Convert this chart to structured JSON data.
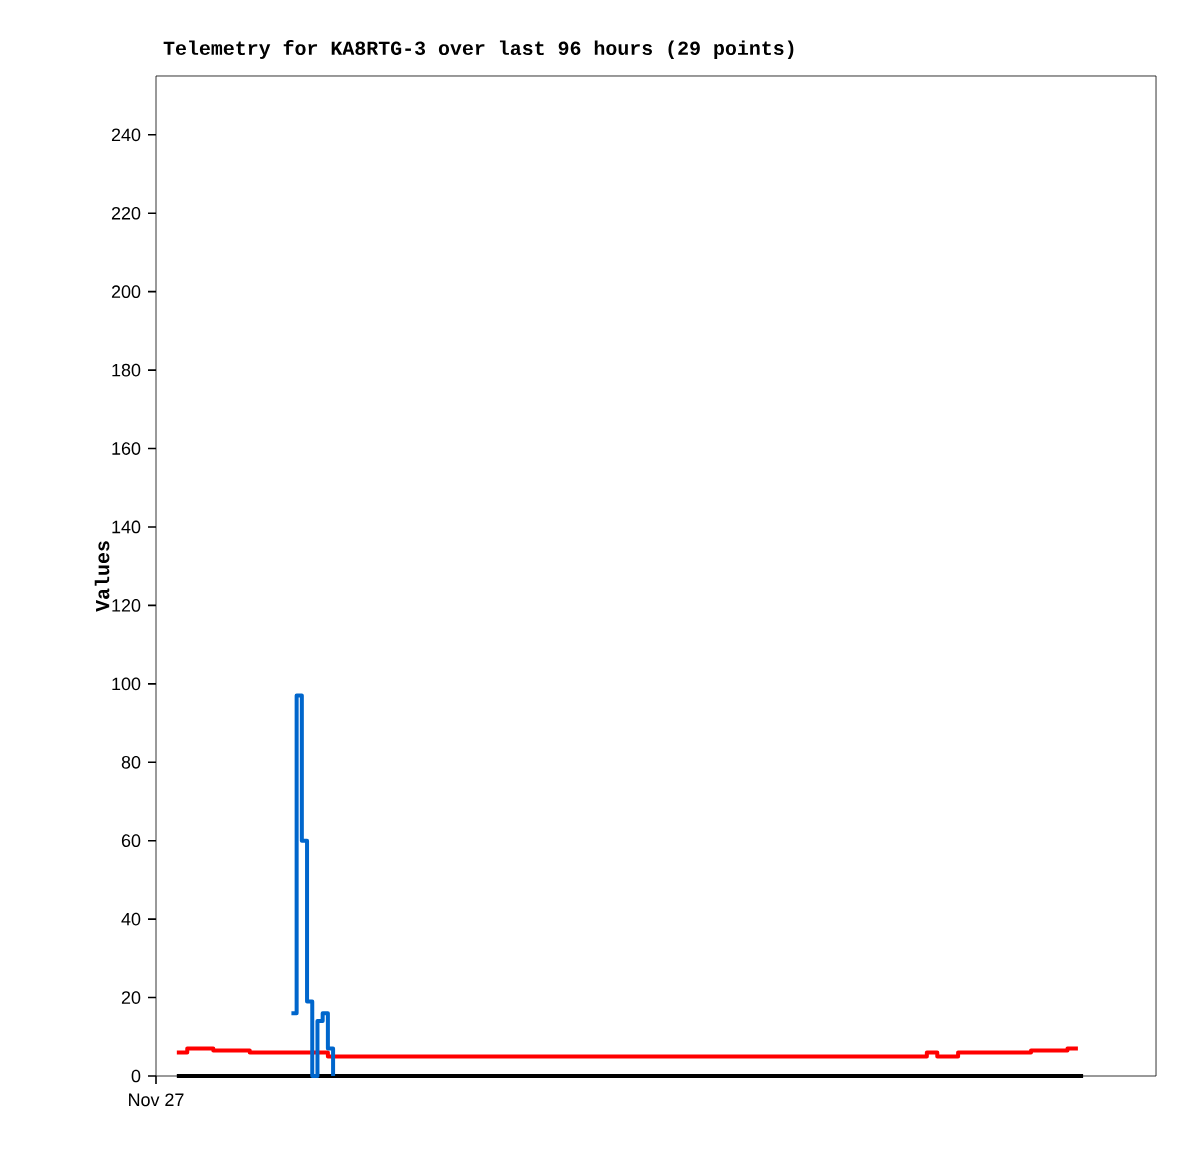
{
  "chart_data": {
    "type": "step",
    "title": "Telemetry for KA8RTG-3 over last 96 hours (29 points)",
    "ylabel": "Values",
    "annotations": [
      "Nov 27"
    ],
    "categories": [
      null,
      null,
      null,
      null,
      null,
      null,
      null,
      null,
      null,
      null,
      null,
      null,
      null,
      null,
      null,
      null,
      null,
      null,
      null,
      null,
      null,
      null,
      null,
      null,
      null,
      null,
      null,
      null,
      null,
      null,
      null,
      null,
      null,
      null,
      null,
      null,
      null,
      null,
      null,
      null,
      null,
      null,
      null,
      null,
      null,
      null,
      null,
      null,
      null,
      null,
      null,
      null,
      null,
      null,
      null,
      null,
      null,
      null,
      null,
      null,
      null,
      null,
      null,
      null,
      null,
      null,
      null,
      null,
      null,
      null,
      null,
      null,
      null,
      null,
      null,
      null,
      null,
      null,
      null,
      null,
      null,
      null,
      null,
      null,
      null,
      null,
      null,
      null,
      null,
      null,
      null,
      null,
      null,
      null,
      null,
      null,
      null,
      null,
      null,
      null,
      null,
      null,
      null,
      null,
      null,
      null,
      null,
      null,
      null,
      null,
      null,
      null,
      null,
      null,
      null,
      null,
      null,
      null,
      null,
      null,
      null,
      null,
      null,
      null,
      null,
      null,
      null,
      null,
      null,
      null,
      null,
      null,
      null,
      null,
      null,
      null,
      null,
      null,
      null,
      null,
      null,
      null,
      null,
      null,
      null,
      null,
      null,
      null,
      null,
      null,
      null,
      null,
      null,
      null,
      null,
      null,
      null,
      null,
      null,
      null,
      null,
      null,
      null,
      null,
      null,
      null,
      null,
      null,
      null,
      null,
      null,
      null,
      null,
      null,
      null,
      null,
      null,
      null,
      null,
      null,
      null,
      null,
      null,
      null,
      null,
      null,
      null,
      null,
      null,
      null,
      null,
      null
    ],
    "ylim": [
      0,
      255
    ],
    "yticks": [
      0,
      20,
      40,
      60,
      80,
      100,
      120,
      140,
      160,
      180,
      200,
      220,
      240
    ],
    "grid": false,
    "series": [
      {
        "color": "#000000",
        "values": [
          null,
          null,
          null,
          null,
          0,
          0,
          0,
          0,
          0,
          0,
          0,
          0,
          0,
          0,
          0,
          0,
          0,
          0,
          0,
          0,
          0,
          0,
          0,
          0,
          0,
          0,
          0,
          0,
          0,
          0,
          0,
          0,
          0,
          0,
          0,
          0,
          0,
          0,
          0,
          0,
          0,
          0,
          0,
          0,
          0,
          0,
          0,
          0,
          0,
          0,
          0,
          0,
          0,
          0,
          0,
          0,
          0,
          0,
          0,
          0,
          0,
          0,
          0,
          0,
          0,
          0,
          0,
          0,
          0,
          0,
          0,
          0,
          0,
          0,
          0,
          0,
          0,
          0,
          0,
          0,
          0,
          0,
          0,
          0,
          0,
          0,
          0,
          0,
          0,
          0,
          0,
          0,
          0,
          0,
          0,
          0,
          0,
          0,
          0,
          0,
          0,
          0,
          0,
          0,
          0,
          0,
          0,
          0,
          0,
          0,
          0,
          0,
          0,
          0,
          0,
          0,
          0,
          0,
          0,
          0,
          0,
          0,
          0,
          0,
          0,
          0,
          0,
          0,
          0,
          0,
          0,
          0,
          0,
          0,
          0,
          0,
          0,
          0,
          0,
          0,
          0,
          0,
          0,
          0,
          0,
          0,
          0,
          0,
          0,
          0,
          0,
          0,
          0,
          0,
          0,
          0,
          0,
          0,
          0,
          0,
          0,
          0,
          0,
          0,
          0,
          0,
          0,
          0,
          0,
          0,
          0,
          0,
          0,
          0,
          0,
          0,
          0,
          0,
          0,
          null,
          null,
          null,
          null,
          null,
          null,
          null,
          null,
          null,
          null,
          null,
          null,
          null
        ]
      },
      {
        "color": "#ff0000",
        "values": [
          null,
          null,
          null,
          null,
          6,
          6,
          7,
          7,
          7,
          7,
          7,
          6.5,
          6.5,
          6.5,
          6.5,
          6.5,
          6.5,
          6.5,
          6,
          6,
          6,
          6,
          6,
          6,
          6,
          6,
          6,
          6,
          6,
          6,
          6,
          6,
          6,
          5,
          5,
          5,
          5,
          5,
          5,
          5,
          5,
          5,
          5,
          5,
          5,
          5,
          5,
          5,
          5,
          5,
          5,
          5,
          5,
          5,
          5,
          5,
          5,
          5,
          5,
          5,
          5,
          5,
          5,
          5,
          5,
          5,
          5,
          5,
          5,
          5,
          5,
          5,
          5,
          5,
          5,
          5,
          5,
          5,
          5,
          5,
          5,
          5,
          5,
          5,
          5,
          5,
          5,
          5,
          5,
          5,
          5,
          5,
          5,
          5,
          5,
          5,
          5,
          5,
          5,
          5,
          5,
          5,
          5,
          5,
          5,
          5,
          5,
          5,
          5,
          5,
          5,
          5,
          5,
          5,
          5,
          5,
          5,
          5,
          5,
          5,
          5,
          5,
          5,
          5,
          5,
          5,
          5,
          5,
          5,
          5,
          5,
          5,
          5,
          5,
          5,
          5,
          5,
          5,
          5,
          5,
          5,
          5,
          5,
          5,
          5,
          5,
          5,
          5,
          6,
          6,
          5,
          5,
          5,
          5,
          6,
          6,
          6,
          6,
          6,
          6,
          6,
          6,
          6,
          6,
          6,
          6,
          6,
          6,
          6.5,
          6.5,
          6.5,
          6.5,
          6.5,
          6.5,
          6.5,
          7,
          7,
          7,
          null,
          null,
          null,
          null,
          null,
          null,
          null,
          null,
          null,
          null,
          null,
          null,
          null,
          null
        ]
      },
      {
        "color": "#0066cc",
        "values": [
          null,
          null,
          null,
          null,
          null,
          null,
          null,
          null,
          null,
          null,
          null,
          null,
          null,
          null,
          null,
          null,
          null,
          null,
          null,
          null,
          null,
          null,
          null,
          null,
          null,
          null,
          16,
          97,
          60,
          19,
          0,
          14,
          16,
          7,
          0,
          null,
          null,
          null,
          null,
          null,
          null,
          null,
          null,
          null,
          null,
          null,
          null,
          null,
          null,
          null,
          null,
          null,
          null,
          null,
          null,
          null,
          null,
          null,
          null,
          null,
          null,
          null,
          null,
          null,
          null,
          null,
          null,
          null,
          null,
          null,
          null,
          null,
          null,
          null,
          null,
          null,
          null,
          null,
          null,
          null,
          null,
          null,
          null,
          null,
          null,
          null,
          null,
          null,
          null,
          null,
          null,
          null,
          null,
          null,
          null,
          null,
          null,
          null,
          null,
          null,
          null,
          null,
          null,
          null,
          null,
          null,
          null,
          null,
          null,
          null,
          null,
          null,
          null,
          null,
          null,
          null,
          null,
          null,
          null,
          null,
          null,
          null,
          null,
          null,
          null,
          null,
          null,
          null,
          null,
          null,
          null,
          null,
          null,
          null,
          null,
          null,
          null,
          null,
          null,
          null,
          null,
          null,
          null,
          null,
          null,
          null,
          null,
          null,
          null,
          null,
          null,
          null,
          null,
          null,
          null,
          null,
          null,
          null,
          null,
          null,
          null,
          null,
          null,
          null,
          null,
          null,
          null,
          null,
          null,
          null,
          null,
          null,
          null,
          null,
          null,
          null,
          null,
          null,
          null,
          null,
          null,
          null,
          null,
          null,
          null,
          null,
          null,
          null,
          null,
          null,
          null,
          null
        ]
      }
    ]
  }
}
